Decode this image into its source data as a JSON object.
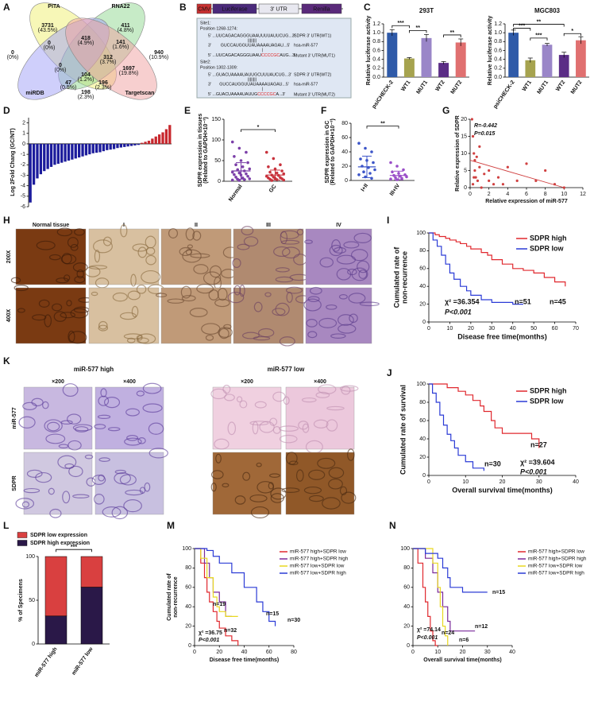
{
  "figure": {
    "panel_labels": [
      "A",
      "B",
      "C",
      "D",
      "E",
      "F",
      "G",
      "H",
      "I",
      "J",
      "K",
      "L",
      "M",
      "N"
    ],
    "venn": {
      "sets": [
        "PITA",
        "RNA22",
        "miRDB",
        "Targetscan"
      ],
      "regions": [
        [
          "3731",
          "(43.5%)"
        ],
        [
          "411",
          "(4.8%)"
        ],
        [
          "0",
          "(0%)"
        ],
        [
          "940",
          "(10.9%)"
        ],
        [
          "0",
          "(0%)"
        ],
        [
          "418",
          "(4.9%)"
        ],
        [
          "141",
          "(1.6%)"
        ],
        [
          "0",
          "(0%)"
        ],
        [
          "312",
          "(3.7%)"
        ],
        [
          "104",
          "(1.2%)"
        ],
        [
          "1697",
          "(19.8%)"
        ],
        [
          "47",
          "(0.5%)"
        ],
        [
          "196",
          "(2.3%)"
        ],
        [
          "198",
          "(2.3%)"
        ]
      ]
    },
    "construct": {
      "parts": [
        "CMV",
        "Luciferase",
        "3' UTR",
        "Renilla"
      ],
      "sites": [
        {
          "label": "Site1:",
          "position": "Position 1268-1274:",
          "wt": "5' ...UUCAGACAGGGUAAUUUUAUUCUG...3'",
          "wt_name": "SDPR 3' UTR(WT1)",
          "pairs": "||||||||",
          "mirna": "3'        GUCCAUGGUUAUAAAAUAGAU...5'",
          "mirna_name": "hsa-miR-577",
          "mut_pair": "|",
          "mut": [
            "5' ...UUCAGACAGGGUAAU",
            "CCCCGC",
            "AUG...3'"
          ],
          "mut_name": "Mutant 3' UTR(MUT1)"
        },
        {
          "label": "Site2:",
          "position": "Position 1302-1309:",
          "wt": "5' ...GUACUAAAAUAUUGCUUUAUCUG...3'",
          "wt_name": "SDPR 3' UTR(WT2)",
          "pairs": "||||||||",
          "mirna": "3'       GUCCAUGGUUAUAAAAUAGAU...5'",
          "mirna_name": "hsa-miR-577",
          "mut_pair": "|",
          "mut": [
            "5' ...GUACUAAAAUAUUG",
            "CCCCGC",
            "A...3'"
          ],
          "mut_name": "Mutant 3' UTR(MUT2)"
        }
      ]
    },
    "ihc_h": {
      "columns": [
        "Normal tissue",
        "I",
        "II",
        "III",
        "IV"
      ],
      "rows": [
        "200X",
        "400X"
      ]
    },
    "ihc_k": {
      "groups": [
        "miR-577 high",
        "miR-577 low"
      ],
      "magnifications": [
        "×200",
        "×400",
        "×200",
        "×400"
      ],
      "rows": [
        "miR-577",
        "SDPR"
      ]
    }
  },
  "chart_data": [
    {
      "type": "bar",
      "title": "293T",
      "y_label": "Relative luciferase activity",
      "categories": [
        "psiCHECK-2",
        "WT1",
        "MUT1",
        "WT2",
        "MUT2"
      ],
      "values": [
        1.0,
        0.42,
        0.88,
        0.32,
        0.78
      ],
      "errors": [
        0.07,
        0.02,
        0.08,
        0.03,
        0.08
      ],
      "colors": [
        "#2f5aa8",
        "#a6a34f",
        "#9a86c8",
        "#5b2d86",
        "#e07070"
      ],
      "ylim": [
        0,
        1.2
      ],
      "yticks": [
        {
          "value": 0,
          "label": "0.0"
        },
        0.2,
        0.4,
        0.6,
        0.8,
        {
          "value": 1,
          "label": "1.0"
        },
        1.2
      ],
      "annotations": [
        "***",
        "**",
        "**"
      ]
    },
    {
      "type": "bar",
      "title": "MGC803",
      "y_label": "Relative luciferase activity",
      "categories": [
        "psiCHECK-2",
        "WT1",
        "MUT1",
        "WT2",
        "MUT2"
      ],
      "values": [
        1.0,
        0.38,
        0.73,
        0.5,
        0.83
      ],
      "errors": [
        0.06,
        0.05,
        0.03,
        0.06,
        0.08
      ],
      "colors": [
        "#2f5aa8",
        "#a6a34f",
        "#9a86c8",
        "#5b2d86",
        "#e07070"
      ],
      "ylim": [
        0,
        1.2
      ],
      "yticks": [
        {
          "value": 0,
          "label": "0.0"
        },
        0.2,
        0.4,
        0.6,
        0.8,
        {
          "value": 1,
          "label": "1.0"
        },
        1.2
      ],
      "annotations": [
        "***",
        "**",
        "***",
        "*"
      ]
    },
    {
      "type": "bar",
      "y_label": "Log 2Fold Chang (GC/NT)",
      "values": [
        -5.6,
        -3.9,
        -3.3,
        -2.9,
        -2.6,
        -2.4,
        -2.2,
        -2.0,
        -1.9,
        -1.8,
        -1.7,
        -1.6,
        -1.5,
        -1.4,
        -1.3,
        -1.2,
        -1.1,
        -1.0,
        -0.9,
        -0.85,
        -0.8,
        -0.7,
        -0.6,
        -0.55,
        -0.5,
        -0.4,
        -0.35,
        -0.3,
        -0.25,
        -0.2,
        -0.15,
        -0.1,
        0.1,
        0.2,
        0.3,
        0.5,
        0.7,
        0.9,
        1.1,
        1.4,
        1.8
      ],
      "color": "#c8282e",
      "negative_color": "#1c1c9c",
      "ylim": [
        -6,
        2.5
      ],
      "yticks": [
        -6,
        -5,
        -4,
        -3,
        -2,
        -1,
        0,
        1,
        2
      ]
    },
    {
      "type": "strip",
      "y_label": [
        "SDPR expression in tissues",
        "(Related to GAPDH×10⁻³)"
      ],
      "categories": [
        "Normal",
        "GC"
      ],
      "series": [
        {
          "color": "#7b3fa8",
          "values": [
            95,
            80,
            70,
            60,
            50,
            45,
            40,
            35,
            30,
            28,
            25,
            22,
            20,
            18,
            16,
            15,
            12,
            10,
            8,
            6,
            5,
            4,
            3,
            2
          ],
          "mean": 25,
          "sd": 20
        },
        {
          "color": "#c8323c",
          "values": [
            70,
            55,
            40,
            35,
            30,
            25,
            22,
            20,
            18,
            15,
            14,
            12,
            10,
            9,
            8,
            7,
            6,
            5,
            4,
            3,
            2
          ],
          "mean": 15,
          "sd": 12
        }
      ],
      "ylim": [
        0,
        150
      ],
      "yticks": [
        0,
        50,
        100,
        150
      ],
      "annotations": [
        "*"
      ]
    },
    {
      "type": "strip",
      "y_label": [
        "SDPR expression in GC",
        "(Related to GAPDH×10⁻³)"
      ],
      "categories": [
        "I+II",
        "III+IV"
      ],
      "series": [
        {
          "color": "#3c55c8",
          "values": [
            52,
            45,
            40,
            30,
            28,
            25,
            20,
            18,
            15,
            12,
            10,
            8,
            5,
            3
          ],
          "mean": 19,
          "sd": 15
        },
        {
          "color": "#9a4ec8",
          "values": [
            25,
            20,
            15,
            12,
            10,
            8,
            7,
            6,
            5,
            4,
            3,
            2,
            1
          ],
          "mean": 7,
          "sd": 6
        }
      ],
      "ylim": [
        0,
        80
      ],
      "yticks": [
        0,
        20,
        40,
        60,
        80
      ],
      "annotations": [
        "**"
      ]
    },
    {
      "type": "scatter",
      "x_label": "Relative expression of miR-577",
      "y_label": "Relative expression of SDPR",
      "x": [
        0.2,
        0.3,
        0.4,
        0.5,
        0.5,
        0.6,
        0.8,
        1,
        1,
        1.5,
        2,
        2,
        2.5,
        3,
        3.5,
        4,
        5,
        6,
        7,
        8,
        9,
        10,
        0.3,
        0.4,
        1.2,
        0.7
      ],
      "values": [
        20,
        15,
        10,
        8,
        5,
        3,
        2,
        12,
        6,
        4,
        2,
        5,
        1,
        3,
        1,
        6,
        2,
        7,
        2,
        5,
        1,
        0,
        1,
        3,
        0,
        9
      ],
      "color": "#d04040",
      "trendline": {
        "x": [
          0,
          10
        ],
        "values": [
          8,
          0
        ]
      },
      "xlim": [
        0,
        12
      ],
      "xticks": [
        0,
        2,
        4,
        6,
        8,
        10,
        12
      ],
      "ylim": [
        0,
        20
      ],
      "yticks": [
        0,
        5,
        10,
        15,
        20
      ],
      "annotations": [
        "R=-0.442",
        "P=0.015"
      ]
    },
    {
      "type": "km",
      "y_label": [
        "Cumulated rate of",
        "non-recurrence"
      ],
      "x_label": "Disease free time(months)",
      "series": [
        {
          "name": "SDPR high",
          "color": "#e0282e",
          "x": [
            0,
            3,
            5,
            8,
            10,
            13,
            15,
            18,
            20,
            25,
            28,
            30,
            35,
            40,
            45,
            50,
            55,
            60,
            65
          ],
          "values": [
            100,
            98,
            96,
            94,
            92,
            90,
            88,
            85,
            82,
            78,
            75,
            70,
            65,
            60,
            58,
            55,
            50,
            45,
            40
          ]
        },
        {
          "name": "SDPR low",
          "color": "#2b3bd6",
          "x": [
            0,
            2,
            4,
            6,
            8,
            10,
            12,
            15,
            18,
            20,
            25,
            30,
            40,
            45
          ],
          "values": [
            100,
            92,
            85,
            75,
            65,
            55,
            48,
            40,
            35,
            30,
            25,
            22,
            20,
            20
          ]
        }
      ],
      "xlim": [
        0,
        70
      ],
      "xticks": [
        0,
        10,
        20,
        30,
        40,
        50,
        60,
        70
      ],
      "ylim": [
        0,
        100
      ],
      "yticks": [
        0,
        20,
        40,
        60,
        80,
        100
      ],
      "annotations": [
        "n=45",
        "n=51",
        "χ² =36.354",
        "P<0.001"
      ]
    },
    {
      "type": "km",
      "y_label": "Cumulated rate of survival",
      "x_label": "Overall survival time(months)",
      "series": [
        {
          "name": "SDPR high",
          "color": "#e0282e",
          "x": [
            0,
            5,
            8,
            10,
            12,
            14,
            15,
            17,
            18,
            20,
            24,
            28,
            30
          ],
          "values": [
            100,
            96,
            92,
            88,
            82,
            76,
            70,
            60,
            52,
            46,
            46,
            40,
            30
          ]
        },
        {
          "name": "SDPR low",
          "color": "#2b3bd6",
          "x": [
            0,
            1,
            2,
            3,
            4,
            5,
            6,
            7,
            8,
            10,
            12,
            15
          ],
          "values": [
            100,
            90,
            80,
            66,
            55,
            45,
            38,
            30,
            22,
            15,
            8,
            5
          ]
        }
      ],
      "xlim": [
        0,
        40
      ],
      "xticks": [
        0,
        10,
        20,
        30,
        40
      ],
      "ylim": [
        0,
        100
      ],
      "yticks": [
        0,
        20,
        40,
        60,
        80,
        100
      ],
      "annotations": [
        "n=27",
        "n=30",
        "χ² =39.604",
        "P<0.001"
      ]
    },
    {
      "type": "stacked_bar",
      "y_label": "% of Specimens",
      "categories": [
        "miR-577 high",
        "miR-577 low"
      ],
      "series": [
        {
          "name": "SDPR low expression",
          "color": "#d94040",
          "values": [
            68,
            35
          ]
        },
        {
          "name": "SDPR high expression",
          "color": "#2a1848",
          "values": [
            32,
            65
          ]
        }
      ],
      "ylim": [
        0,
        100
      ],
      "yticks": [
        0,
        50,
        100
      ],
      "annotations": [
        "***"
      ]
    },
    {
      "type": "km",
      "y_label": [
        "Cumulated rate of",
        "non-recurrence"
      ],
      "x_label": "Disease free time(months)",
      "series": [
        {
          "name": "miR-577 high+SDPR low",
          "color": "#e0282e",
          "x": [
            0,
            5,
            8,
            10,
            12,
            15,
            18,
            20,
            25,
            30,
            35
          ],
          "values": [
            100,
            85,
            70,
            55,
            45,
            35,
            25,
            18,
            10,
            5,
            0
          ]
        },
        {
          "name": "miR-577 high+SDPR high",
          "color": "#7a2a9a",
          "x": [
            0,
            8,
            12,
            15,
            20,
            25,
            30
          ],
          "values": [
            100,
            85,
            70,
            55,
            45,
            30,
            30
          ]
        },
        {
          "name": "miR-577 low+SDPR low",
          "color": "#e8d820",
          "x": [
            0,
            5,
            10,
            15,
            18,
            20,
            25,
            35
          ],
          "values": [
            100,
            90,
            70,
            50,
            40,
            35,
            30,
            30
          ]
        },
        {
          "name": "miR-577 low+SDPR high",
          "color": "#2b3bd6",
          "x": [
            0,
            10,
            15,
            20,
            30,
            40,
            50,
            55,
            60,
            65
          ],
          "values": [
            100,
            98,
            92,
            85,
            75,
            60,
            45,
            35,
            25,
            20
          ]
        }
      ],
      "xlim": [
        0,
        80
      ],
      "xticks": [
        0,
        20,
        40,
        60,
        80
      ],
      "ylim": [
        0,
        100
      ],
      "yticks": [
        0,
        20,
        40,
        60,
        80,
        100
      ],
      "annotations": [
        "n=19",
        "n=15",
        "n=30",
        "n=32",
        "χ² =36.75",
        "P<0.001"
      ]
    },
    {
      "type": "km",
      "x_label": "Overall survival time(months)",
      "series": [
        {
          "name": "miR-577 high+SDPR low",
          "color": "#e0282e",
          "x": [
            0,
            2,
            4,
            5,
            6,
            7,
            8,
            9,
            10
          ],
          "values": [
            100,
            85,
            60,
            45,
            30,
            15,
            5,
            0,
            0
          ]
        },
        {
          "name": "miR-577 high+SDPR high",
          "color": "#7a2a9a",
          "x": [
            0,
            5,
            8,
            10,
            12,
            14,
            15,
            20,
            25
          ],
          "values": [
            100,
            90,
            75,
            55,
            40,
            25,
            15,
            15,
            15
          ]
        },
        {
          "name": "miR-577 low+SDPR low",
          "color": "#e8d820",
          "x": [
            0,
            8,
            10,
            11,
            12,
            13,
            14
          ],
          "values": [
            100,
            85,
            60,
            40,
            20,
            10,
            0
          ]
        },
        {
          "name": "miR-577 low+SDPR high",
          "color": "#2b3bd6",
          "x": [
            0,
            5,
            10,
            12,
            14,
            15,
            20,
            25,
            30
          ],
          "values": [
            100,
            95,
            90,
            80,
            70,
            60,
            55,
            55,
            55
          ]
        }
      ],
      "xlim": [
        0,
        40
      ],
      "xticks": [
        0,
        10,
        20,
        30,
        40
      ],
      "ylim": [
        0,
        100
      ],
      "yticks": [
        0,
        20,
        40,
        60,
        80,
        100
      ],
      "annotations": [
        "n=15",
        "n=12",
        "n=24",
        "n=6",
        "χ² =74.14",
        "P<0.001"
      ]
    }
  ]
}
